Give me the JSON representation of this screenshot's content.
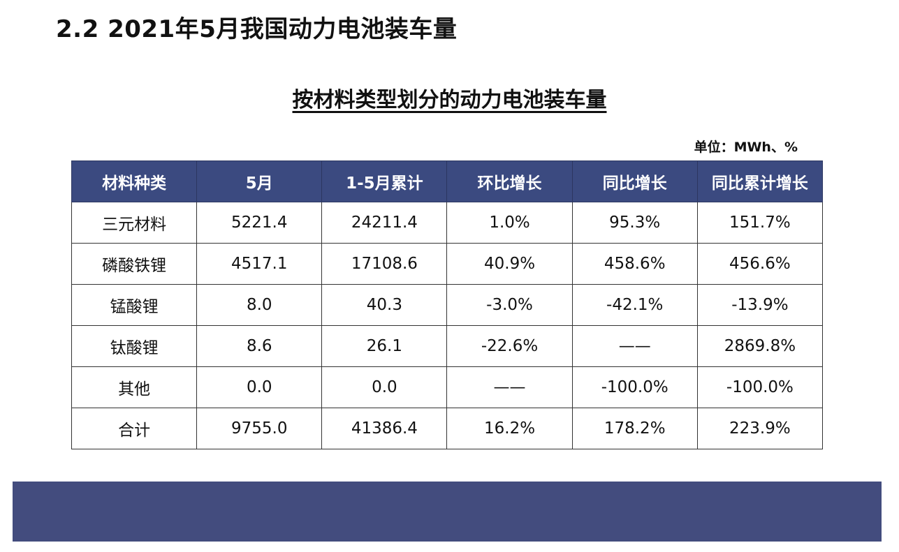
{
  "title": "2.2 2021年5月我国动力电池装车量",
  "subtitle": "按材料类型划分的动力电池装车量",
  "unit": "单位：MWh、%",
  "colors": {
    "header_bg": "#3b4a80",
    "footer_bar": "#434c7e"
  },
  "table": {
    "headers": [
      "材料种类",
      "5月",
      "1-5月累计",
      "环比增长",
      "同比增长",
      "同比累计增长"
    ],
    "rows": [
      [
        "三元材料",
        "5221.4",
        "24211.4",
        "1.0%",
        "95.3%",
        "151.7%"
      ],
      [
        "磷酸铁锂",
        "4517.1",
        "17108.6",
        "40.9%",
        "458.6%",
        "456.6%"
      ],
      [
        "锰酸锂",
        "8.0",
        "40.3",
        "-3.0%",
        "-42.1%",
        "-13.9%"
      ],
      [
        "钛酸锂",
        "8.6",
        "26.1",
        "-22.6%",
        "——",
        "2869.8%"
      ],
      [
        "其他",
        "0.0",
        "0.0",
        "——",
        "-100.0%",
        "-100.0%"
      ],
      [
        "合计",
        "9755.0",
        "41386.4",
        "16.2%",
        "178.2%",
        "223.9%"
      ]
    ]
  }
}
